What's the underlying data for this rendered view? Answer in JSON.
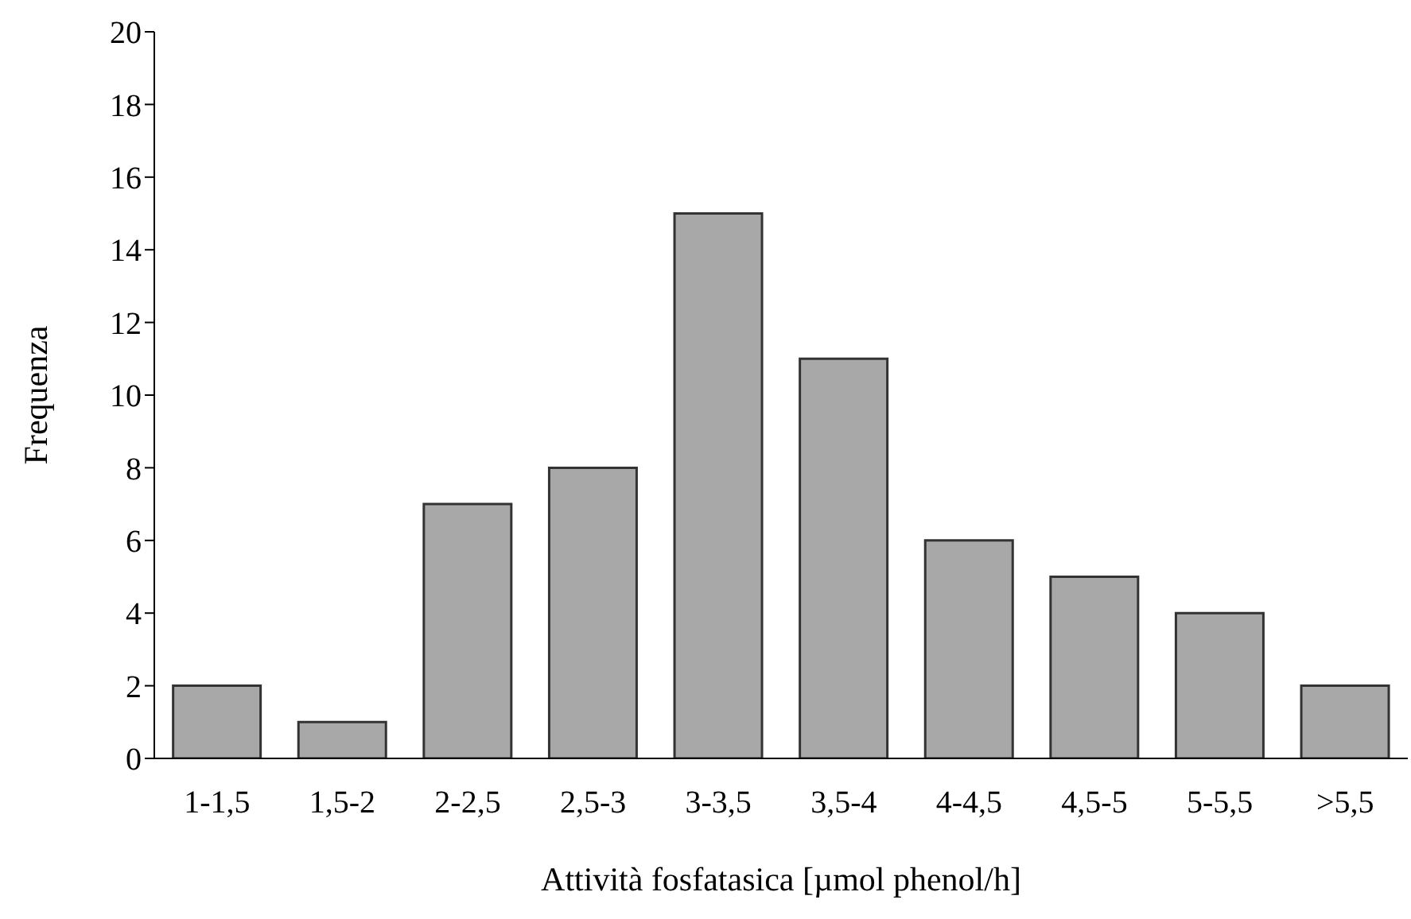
{
  "chart_data": {
    "type": "bar",
    "xlabel": "Attività fosfatasica [µmol phenol/h]",
    "ylabel": "Frequenza",
    "categories": [
      "1-1,5",
      "1,5-2",
      "2-2,5",
      "2,5-3",
      "3-3,5",
      "3,5-4",
      "4-4,5",
      "4,5-5",
      "5-5,5",
      ">5,5"
    ],
    "values": [
      2,
      1,
      7,
      8,
      15,
      11,
      6,
      5,
      4,
      2
    ],
    "color": "#a8a8a8",
    "ylim": [
      0,
      20
    ],
    "yticks": [
      0,
      2,
      4,
      6,
      8,
      10,
      12,
      14,
      16,
      18,
      20
    ],
    "grid": false,
    "legend": false
  }
}
